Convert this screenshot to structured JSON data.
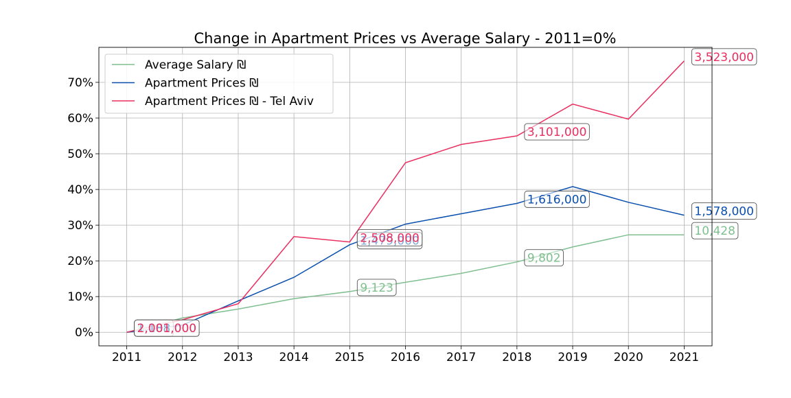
{
  "chart_data": {
    "type": "line",
    "title": "Change in Apartment Prices vs Average Salary - 2011=0%",
    "xlabel": "",
    "ylabel": "",
    "x": [
      2011,
      2012,
      2013,
      2014,
      2015,
      2016,
      2017,
      2018,
      2019,
      2020,
      2021
    ],
    "x_ticks": [
      "2011",
      "2012",
      "2013",
      "2014",
      "2015",
      "2016",
      "2017",
      "2018",
      "2019",
      "2020",
      "2021"
    ],
    "ylim": [
      -3.8,
      79.8
    ],
    "y_ticks": [
      0,
      10,
      20,
      30,
      40,
      50,
      60,
      70
    ],
    "y_tick_labels": [
      "0%",
      "10%",
      "20%",
      "30%",
      "40%",
      "50%",
      "60%",
      "70%"
    ],
    "grid": true,
    "legend_position": "top-left",
    "series": [
      {
        "name": "Average Salary ₪",
        "color": "#7fbf8f",
        "values": [
          0,
          4.0,
          6.5,
          9.4,
          11.4,
          14.0,
          16.5,
          19.7,
          23.9,
          27.3,
          27.3
        ],
        "annotations": [
          {
            "x": 2011,
            "y": 0,
            "label": "8,190"
          },
          {
            "x": 2015,
            "y": 11.4,
            "label": "9,123"
          },
          {
            "x": 2018,
            "y": 19.7,
            "label": "9,802"
          },
          {
            "x": 2021,
            "y": 27.3,
            "label": "10,428"
          }
        ]
      },
      {
        "name": "Apartment Prices ₪",
        "color": "#0a4fae",
        "values": [
          0,
          2.0,
          8.8,
          15.4,
          24.5,
          30.3,
          33.2,
          36.1,
          40.8,
          36.4,
          32.8
        ],
        "annotations": [
          {
            "x": 2011,
            "y": 0,
            "label": "1,188,000"
          },
          {
            "x": 2015,
            "y": 24.5,
            "label": "1,479,000"
          },
          {
            "x": 2018,
            "y": 36.1,
            "label": "1,616,000"
          },
          {
            "x": 2021,
            "y": 32.8,
            "label": "1,578,000"
          }
        ]
      },
      {
        "name": "Apartment Prices ₪ - Tel Aviv",
        "color": "#ea2e5f",
        "values": [
          0,
          3.5,
          8.0,
          26.8,
          25.3,
          47.5,
          52.6,
          55.0,
          63.9,
          59.7,
          76.0
        ],
        "annotations": [
          {
            "x": 2011,
            "y": 0,
            "label": "2,001,000"
          },
          {
            "x": 2015,
            "y": 25.3,
            "label": "2,508,000"
          },
          {
            "x": 2018,
            "y": 55.0,
            "label": "3,101,000"
          },
          {
            "x": 2021,
            "y": 76.0,
            "label": "3,523,000"
          }
        ]
      }
    ]
  }
}
